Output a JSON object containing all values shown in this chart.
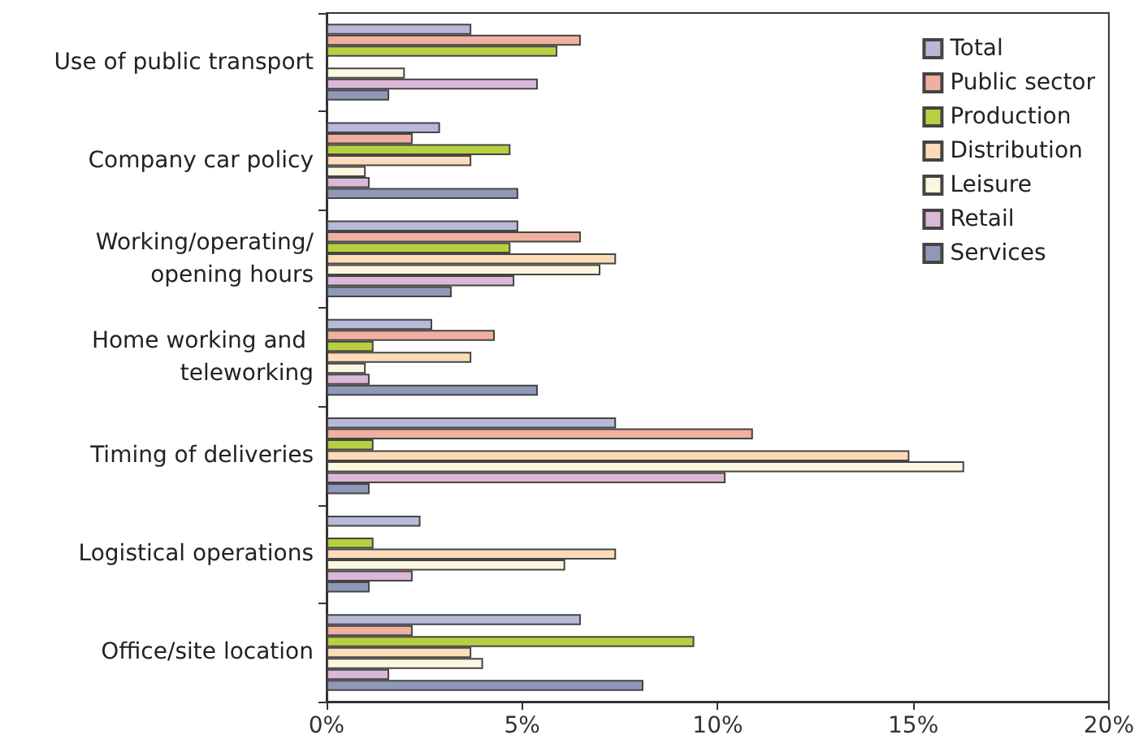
{
  "chart_data": {
    "type": "bar",
    "orientation": "horizontal",
    "categories": [
      "Use of public transport",
      "Company car policy",
      "Working/operating/opening hours",
      "Home working and teleworking",
      "Timing of deliveries",
      "Logistical operations",
      "Office/site location"
    ],
    "series": [
      {
        "name": "Total",
        "color": "#b8b8d8",
        "values": [
          3.7,
          2.9,
          4.9,
          2.7,
          7.4,
          2.4,
          6.5
        ]
      },
      {
        "name": "Public sector",
        "color": "#f0b0a0",
        "values": [
          6.5,
          2.2,
          6.5,
          4.3,
          10.9,
          null,
          2.2
        ]
      },
      {
        "name": "Production",
        "color": "#b8d040",
        "values": [
          5.9,
          4.7,
          4.7,
          1.2,
          1.2,
          1.2,
          9.4
        ]
      },
      {
        "name": "Distribution",
        "color": "#fcdcb8",
        "values": [
          null,
          3.7,
          7.4,
          3.7,
          14.9,
          7.4,
          3.7
        ]
      },
      {
        "name": "Leisure",
        "color": "#fcf8e0",
        "values": [
          2.0,
          1.0,
          7.0,
          1.0,
          16.3,
          6.1,
          4.0
        ]
      },
      {
        "name": "Retail",
        "color": "#dcb8d8",
        "values": [
          5.4,
          1.1,
          4.8,
          1.1,
          10.2,
          2.2,
          1.6
        ]
      },
      {
        "name": "Services",
        "color": "#9098b8",
        "values": [
          1.6,
          4.9,
          3.2,
          5.4,
          1.1,
          1.1,
          8.1
        ]
      }
    ],
    "xlim": [
      0,
      20
    ],
    "xticks": [
      {
        "value": 0,
        "label": "0%"
      },
      {
        "value": 5,
        "label": "5%"
      },
      {
        "value": 10,
        "label": "10%"
      },
      {
        "value": 15,
        "label": "15%"
      },
      {
        "value": 20,
        "label": "20%"
      }
    ],
    "grid": false,
    "legend": "top right"
  }
}
